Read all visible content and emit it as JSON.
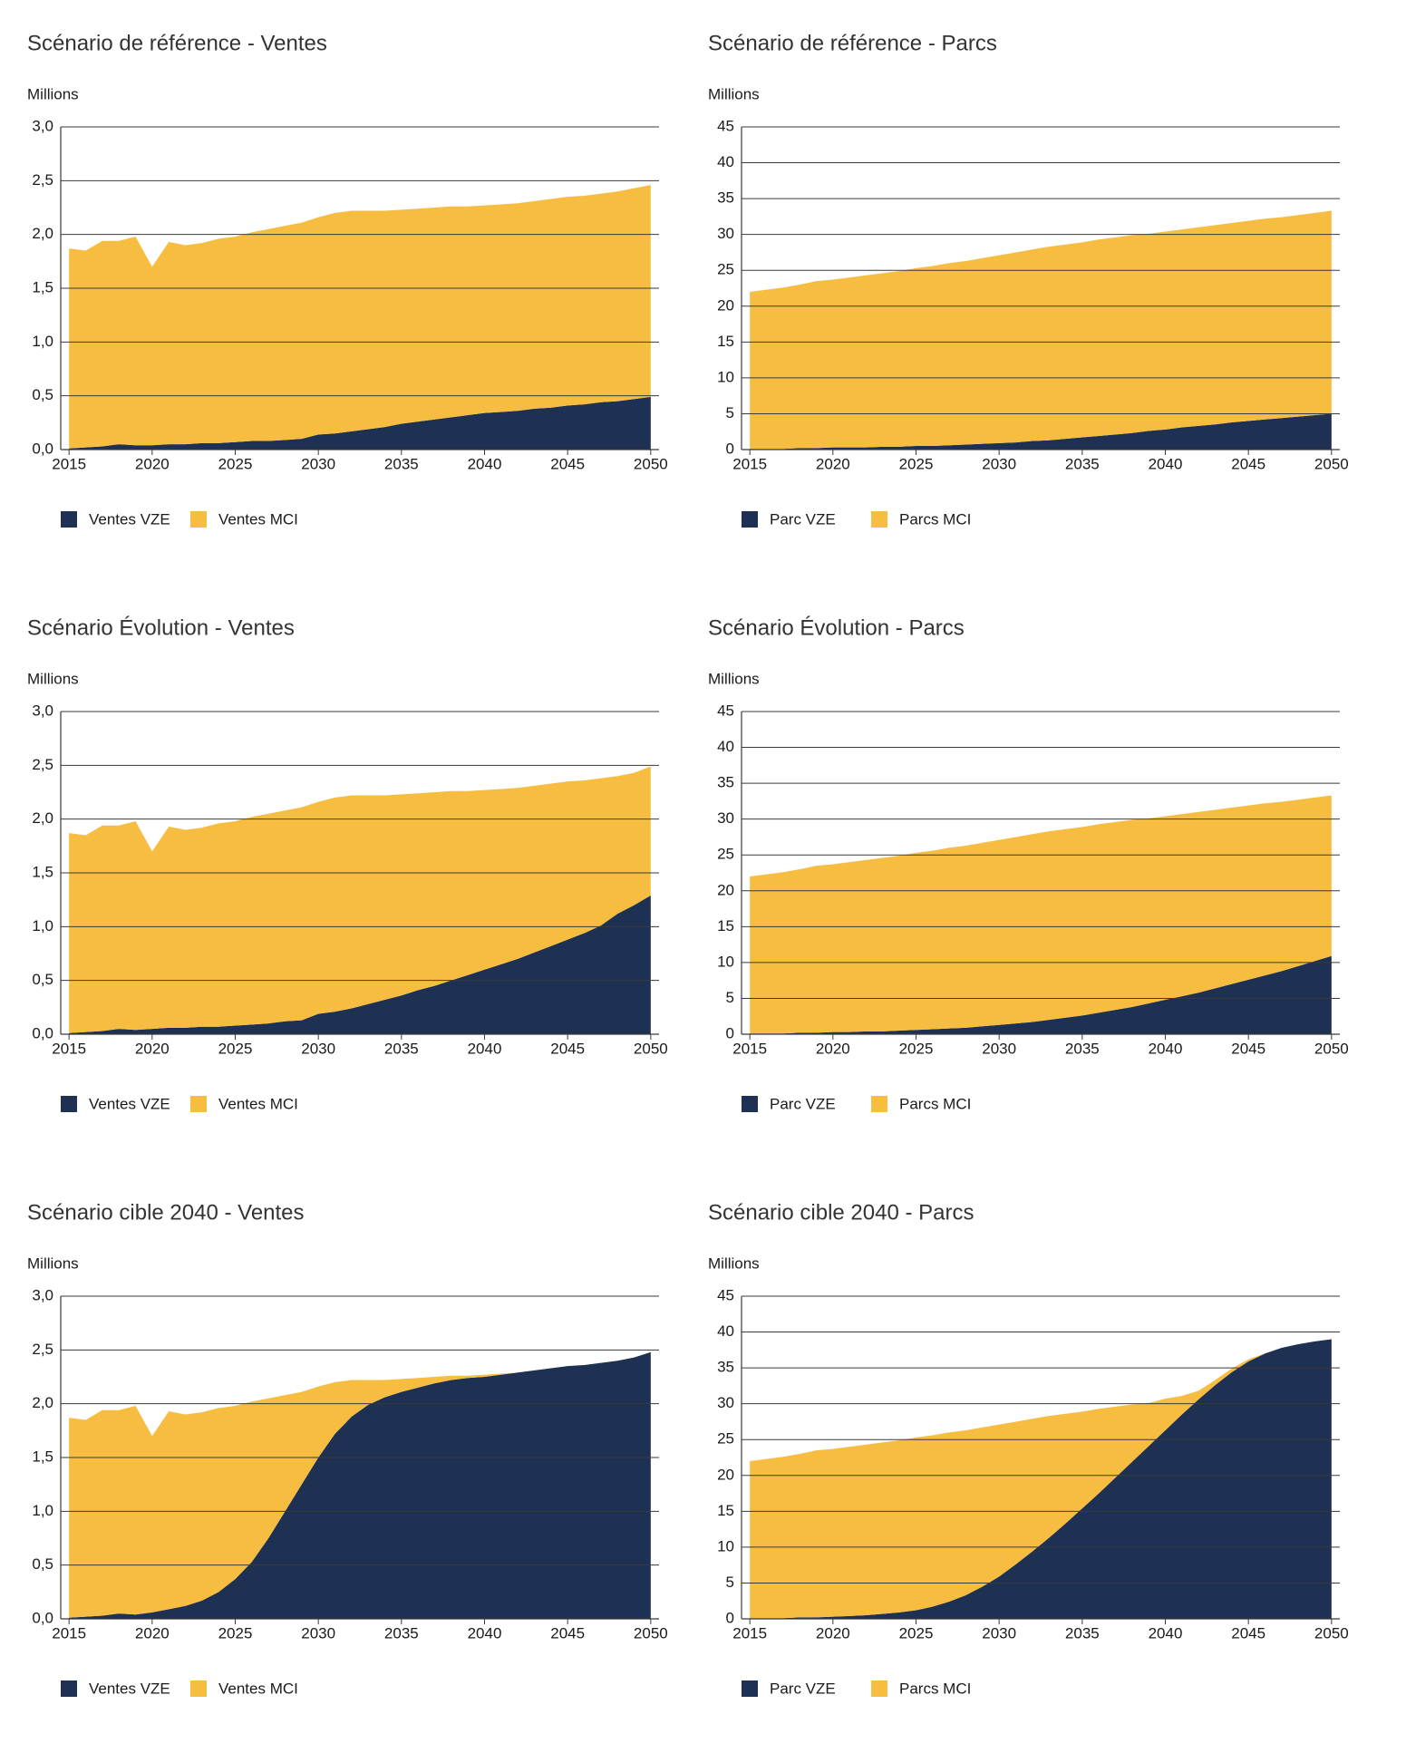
{
  "chart_data": [
    {
      "type": "area",
      "title": "Scénario de référence - Ventes",
      "ylabel": "Millions",
      "x": [
        2015,
        2016,
        2017,
        2018,
        2019,
        2020,
        2021,
        2022,
        2023,
        2024,
        2025,
        2026,
        2027,
        2028,
        2029,
        2030,
        2031,
        2032,
        2033,
        2034,
        2035,
        2036,
        2037,
        2038,
        2039,
        2040,
        2041,
        2042,
        2043,
        2044,
        2045,
        2046,
        2047,
        2048,
        2049,
        2050
      ],
      "xlim": [
        2014.5,
        2050.5
      ],
      "xticks": [
        2015,
        2020,
        2025,
        2030,
        2035,
        2040,
        2045,
        2050
      ],
      "ylim": [
        0,
        3
      ],
      "yticks": [
        {
          "value": 0,
          "label": "0,0"
        },
        {
          "value": 0.5,
          "label": "0,5"
        },
        {
          "value": 1,
          "label": "1,0"
        },
        {
          "value": 1.5,
          "label": "1,5"
        },
        {
          "value": 2,
          "label": "2,0"
        },
        {
          "value": 2.5,
          "label": "2,5"
        },
        {
          "value": 3,
          "label": "3,0"
        }
      ],
      "grid": true,
      "series": [
        {
          "name": "Ventes VZE",
          "color": "#1e3152",
          "values": [
            0.01,
            0.02,
            0.03,
            0.05,
            0.04,
            0.04,
            0.05,
            0.05,
            0.06,
            0.06,
            0.07,
            0.08,
            0.08,
            0.09,
            0.1,
            0.14,
            0.15,
            0.17,
            0.19,
            0.21,
            0.24,
            0.26,
            0.28,
            0.3,
            0.32,
            0.34,
            0.35,
            0.36,
            0.38,
            0.39,
            0.41,
            0.42,
            0.44,
            0.45,
            0.47,
            0.49
          ]
        },
        {
          "name": "Ventes MCI",
          "color": "#f6bd41",
          "values": [
            1.86,
            1.83,
            1.91,
            1.89,
            1.94,
            1.66,
            1.88,
            1.85,
            1.86,
            1.9,
            1.91,
            1.94,
            1.97,
            1.99,
            2.01,
            2.02,
            2.05,
            2.05,
            2.03,
            2.01,
            1.99,
            1.98,
            1.97,
            1.96,
            1.94,
            1.93,
            1.93,
            1.93,
            1.93,
            1.94,
            1.94,
            1.94,
            1.94,
            1.95,
            1.96,
            1.97
          ]
        }
      ]
    },
    {
      "type": "area",
      "title": "Scénario de référence - Parcs",
      "ylabel": "Millions",
      "x": [
        2015,
        2016,
        2017,
        2018,
        2019,
        2020,
        2021,
        2022,
        2023,
        2024,
        2025,
        2026,
        2027,
        2028,
        2029,
        2030,
        2031,
        2032,
        2033,
        2034,
        2035,
        2036,
        2037,
        2038,
        2039,
        2040,
        2041,
        2042,
        2043,
        2044,
        2045,
        2046,
        2047,
        2048,
        2049,
        2050
      ],
      "xlim": [
        2014.5,
        2050.5
      ],
      "xticks": [
        2015,
        2020,
        2025,
        2030,
        2035,
        2040,
        2045,
        2050
      ],
      "ylim": [
        0,
        45
      ],
      "yticks": [
        0,
        5,
        10,
        15,
        20,
        25,
        30,
        35,
        40,
        45
      ],
      "grid": true,
      "series": [
        {
          "name": "Parc VZE",
          "color": "#1e3152",
          "values": [
            0.1,
            0.1,
            0.1,
            0.2,
            0.2,
            0.3,
            0.3,
            0.3,
            0.4,
            0.4,
            0.5,
            0.5,
            0.6,
            0.7,
            0.8,
            0.9,
            1.0,
            1.2,
            1.3,
            1.5,
            1.7,
            1.9,
            2.1,
            2.3,
            2.6,
            2.8,
            3.1,
            3.3,
            3.5,
            3.8,
            4.0,
            4.2,
            4.4,
            4.6,
            4.8,
            5.0
          ]
        },
        {
          "name": "Parcs MCI",
          "color": "#f6bd41",
          "values": [
            21.9,
            22.2,
            22.5,
            22.8,
            23.3,
            23.4,
            23.7,
            24.0,
            24.2,
            24.5,
            24.8,
            25.1,
            25.4,
            25.6,
            25.9,
            26.2,
            26.5,
            26.7,
            27.0,
            27.1,
            27.2,
            27.4,
            27.5,
            27.6,
            27.5,
            27.6,
            27.6,
            27.7,
            27.8,
            27.8,
            27.9,
            28.0,
            28.0,
            28.1,
            28.2,
            28.3
          ]
        }
      ]
    },
    {
      "type": "area",
      "title": "Scénario Évolution - Ventes",
      "ylabel": "Millions",
      "x": [
        2015,
        2016,
        2017,
        2018,
        2019,
        2020,
        2021,
        2022,
        2023,
        2024,
        2025,
        2026,
        2027,
        2028,
        2029,
        2030,
        2031,
        2032,
        2033,
        2034,
        2035,
        2036,
        2037,
        2038,
        2039,
        2040,
        2041,
        2042,
        2043,
        2044,
        2045,
        2046,
        2047,
        2048,
        2049,
        2050
      ],
      "xlim": [
        2014.5,
        2050.5
      ],
      "xticks": [
        2015,
        2020,
        2025,
        2030,
        2035,
        2040,
        2045,
        2050
      ],
      "ylim": [
        0,
        3
      ],
      "yticks": [
        {
          "value": 0,
          "label": "0,0"
        },
        {
          "value": 0.5,
          "label": "0,5"
        },
        {
          "value": 1,
          "label": "1,0"
        },
        {
          "value": 1.5,
          "label": "1,5"
        },
        {
          "value": 2,
          "label": "2,0"
        },
        {
          "value": 2.5,
          "label": "2,5"
        },
        {
          "value": 3,
          "label": "3,0"
        }
      ],
      "grid": true,
      "series": [
        {
          "name": "Ventes VZE",
          "color": "#1e3152",
          "values": [
            0.01,
            0.02,
            0.03,
            0.05,
            0.04,
            0.05,
            0.06,
            0.06,
            0.07,
            0.07,
            0.08,
            0.09,
            0.1,
            0.12,
            0.13,
            0.19,
            0.21,
            0.24,
            0.28,
            0.32,
            0.36,
            0.41,
            0.45,
            0.5,
            0.55,
            0.6,
            0.65,
            0.7,
            0.76,
            0.82,
            0.88,
            0.94,
            1.01,
            1.12,
            1.2,
            1.29
          ]
        },
        {
          "name": "Ventes MCI",
          "color": "#f6bd41",
          "values": [
            1.86,
            1.83,
            1.91,
            1.89,
            1.94,
            1.65,
            1.87,
            1.84,
            1.85,
            1.89,
            1.9,
            1.93,
            1.95,
            1.96,
            1.98,
            1.97,
            1.99,
            1.98,
            1.94,
            1.9,
            1.87,
            1.83,
            1.8,
            1.76,
            1.71,
            1.67,
            1.63,
            1.59,
            1.55,
            1.51,
            1.47,
            1.42,
            1.37,
            1.28,
            1.23,
            1.2
          ]
        }
      ]
    },
    {
      "type": "area",
      "title": "Scénario Évolution - Parcs",
      "ylabel": "Millions",
      "x": [
        2015,
        2016,
        2017,
        2018,
        2019,
        2020,
        2021,
        2022,
        2023,
        2024,
        2025,
        2026,
        2027,
        2028,
        2029,
        2030,
        2031,
        2032,
        2033,
        2034,
        2035,
        2036,
        2037,
        2038,
        2039,
        2040,
        2041,
        2042,
        2043,
        2044,
        2045,
        2046,
        2047,
        2048,
        2049,
        2050
      ],
      "xlim": [
        2014.5,
        2050.5
      ],
      "xticks": [
        2015,
        2020,
        2025,
        2030,
        2035,
        2040,
        2045,
        2050
      ],
      "ylim": [
        0,
        45
      ],
      "yticks": [
        0,
        5,
        10,
        15,
        20,
        25,
        30,
        35,
        40,
        45
      ],
      "grid": true,
      "series": [
        {
          "name": "Parc VZE",
          "color": "#1e3152",
          "values": [
            0.1,
            0.1,
            0.1,
            0.2,
            0.2,
            0.3,
            0.3,
            0.4,
            0.4,
            0.5,
            0.6,
            0.7,
            0.8,
            0.9,
            1.1,
            1.3,
            1.5,
            1.7,
            2.0,
            2.3,
            2.6,
            3.0,
            3.4,
            3.8,
            4.3,
            4.8,
            5.3,
            5.8,
            6.4,
            7.0,
            7.6,
            8.2,
            8.8,
            9.5,
            10.2,
            10.9
          ]
        },
        {
          "name": "Parcs MCI",
          "color": "#f6bd41",
          "values": [
            21.9,
            22.2,
            22.5,
            22.8,
            23.3,
            23.4,
            23.7,
            23.9,
            24.2,
            24.4,
            24.7,
            24.9,
            25.2,
            25.4,
            25.6,
            25.8,
            26.0,
            26.2,
            26.3,
            26.3,
            26.3,
            26.3,
            26.2,
            26.1,
            25.8,
            25.6,
            25.4,
            25.2,
            24.9,
            24.6,
            24.3,
            24.0,
            23.6,
            23.2,
            22.8,
            22.4
          ]
        }
      ]
    },
    {
      "type": "area",
      "title": "Scénario cible 2040 - Ventes",
      "ylabel": "Millions",
      "x": [
        2015,
        2016,
        2017,
        2018,
        2019,
        2020,
        2021,
        2022,
        2023,
        2024,
        2025,
        2026,
        2027,
        2028,
        2029,
        2030,
        2031,
        2032,
        2033,
        2034,
        2035,
        2036,
        2037,
        2038,
        2039,
        2040,
        2041,
        2042,
        2043,
        2044,
        2045,
        2046,
        2047,
        2048,
        2049,
        2050
      ],
      "xlim": [
        2014.5,
        2050.5
      ],
      "xticks": [
        2015,
        2020,
        2025,
        2030,
        2035,
        2040,
        2045,
        2050
      ],
      "ylim": [
        0,
        3
      ],
      "yticks": [
        {
          "value": 0,
          "label": "0,0"
        },
        {
          "value": 0.5,
          "label": "0,5"
        },
        {
          "value": 1,
          "label": "1,0"
        },
        {
          "value": 1.5,
          "label": "1,5"
        },
        {
          "value": 2,
          "label": "2,0"
        },
        {
          "value": 2.5,
          "label": "2,5"
        },
        {
          "value": 3,
          "label": "3,0"
        }
      ],
      "grid": true,
      "series": [
        {
          "name": "Ventes VZE",
          "color": "#1e3152",
          "values": [
            0.01,
            0.02,
            0.03,
            0.05,
            0.04,
            0.06,
            0.09,
            0.12,
            0.17,
            0.25,
            0.37,
            0.53,
            0.75,
            1.0,
            1.25,
            1.5,
            1.72,
            1.88,
            1.99,
            2.06,
            2.11,
            2.15,
            2.19,
            2.22,
            2.24,
            2.25,
            2.27,
            2.29,
            2.31,
            2.33,
            2.35,
            2.36,
            2.38,
            2.4,
            2.43,
            2.48
          ]
        },
        {
          "name": "Ventes MCI",
          "color": "#f6bd41",
          "values": [
            1.86,
            1.83,
            1.91,
            1.89,
            1.94,
            1.64,
            1.84,
            1.78,
            1.75,
            1.71,
            1.61,
            1.49,
            1.3,
            1.08,
            0.86,
            0.66,
            0.48,
            0.34,
            0.23,
            0.16,
            0.12,
            0.09,
            0.06,
            0.04,
            0.02,
            0.02,
            0.01,
            0,
            0,
            0,
            0,
            0,
            0,
            0,
            0,
            0
          ]
        }
      ]
    },
    {
      "type": "area",
      "title": "Scénario cible 2040 - Parcs",
      "ylabel": "Millions",
      "x": [
        2015,
        2016,
        2017,
        2018,
        2019,
        2020,
        2021,
        2022,
        2023,
        2024,
        2025,
        2026,
        2027,
        2028,
        2029,
        2030,
        2031,
        2032,
        2033,
        2034,
        2035,
        2036,
        2037,
        2038,
        2039,
        2040,
        2041,
        2042,
        2043,
        2044,
        2045,
        2046,
        2047,
        2048,
        2049,
        2050
      ],
      "xlim": [
        2014.5,
        2050.5
      ],
      "xticks": [
        2015,
        2020,
        2025,
        2030,
        2035,
        2040,
        2045,
        2050
      ],
      "ylim": [
        0,
        45
      ],
      "yticks": [
        0,
        5,
        10,
        15,
        20,
        25,
        30,
        35,
        40,
        45
      ],
      "grid": true,
      "series": [
        {
          "name": "Parc VZE",
          "color": "#1e3152",
          "values": [
            0.1,
            0.1,
            0.1,
            0.2,
            0.2,
            0.3,
            0.4,
            0.5,
            0.7,
            0.9,
            1.2,
            1.7,
            2.4,
            3.3,
            4.5,
            5.9,
            7.6,
            9.4,
            11.3,
            13.3,
            15.4,
            17.5,
            19.7,
            21.9,
            24.1,
            26.3,
            28.5,
            30.6,
            32.6,
            34.4,
            35.9,
            37.0,
            37.8,
            38.3,
            38.7,
            39.0
          ]
        },
        {
          "name": "Parcs MCI",
          "color": "#f6bd41",
          "values": [
            21.9,
            22.2,
            22.5,
            22.8,
            23.3,
            23.4,
            23.6,
            23.8,
            23.9,
            24.0,
            24.1,
            23.9,
            23.6,
            23.0,
            22.2,
            21.2,
            19.9,
            18.5,
            17.0,
            15.3,
            13.5,
            11.8,
            9.9,
            8.0,
            6.0,
            4.4,
            2.6,
            1.2,
            0.7,
            0.5,
            0.3,
            0,
            0,
            0,
            0,
            0
          ]
        }
      ]
    }
  ]
}
